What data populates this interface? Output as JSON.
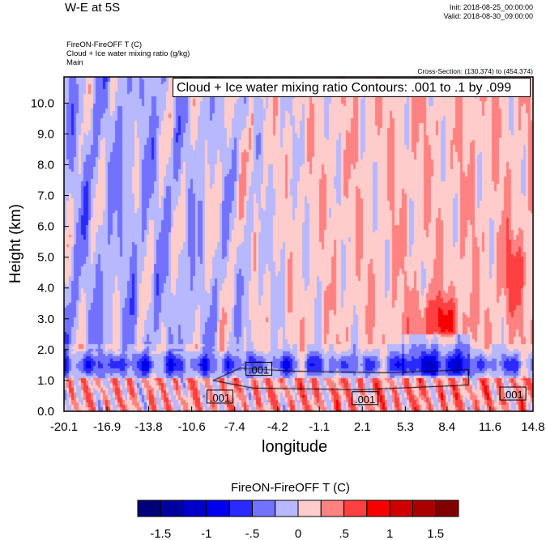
{
  "header": {
    "title": "W-E at 5S",
    "init": "Init: 2018-08-25_00:00:00",
    "valid": "Valid: 2018-08-30_09:00:00",
    "fields": [
      "FireON-FireOFF T   (C)",
      "Cloud + Ice water mixing ratio   (g/kg)",
      "Main"
    ],
    "cross_section": "Cross-Section: (130,374) to (454,374)"
  },
  "chart_data": {
    "type": "heatmap",
    "title": "W-E at 5S",
    "xlabel": "longitude",
    "ylabel": "Height (km)",
    "xlim": [
      -20.1,
      14.8
    ],
    "ylim": [
      0,
      10.85
    ],
    "x_ticks": [
      "-20.1",
      "-16.9",
      "-13.8",
      "-10.6",
      "-7.4",
      "-4.2",
      "-1.1",
      "2.1",
      "5.3",
      "8.4",
      "11.6",
      "14.8"
    ],
    "y_ticks": [
      "0.0",
      "1.0",
      "2.0",
      "3.0",
      "4.0",
      "5.0",
      "6.0",
      "7.0",
      "8.0",
      "9.0",
      "10.0"
    ],
    "contour_legend": "Cloud + Ice water mixing ratio Contours: .001 to .1 by .099",
    "contour_labels": [
      ".001",
      ".001",
      ".001",
      ".001"
    ],
    "colorbar": {
      "title": "FireON-FireOFF T  (C)",
      "levels": [
        -1.5,
        -1.25,
        -1,
        -0.75,
        -0.5,
        -0.25,
        0,
        0.25,
        0.5,
        0.75,
        1,
        1.25,
        1.5
      ],
      "labels": [
        "-1.5",
        "-1",
        "-.5",
        "0",
        ".5",
        "1",
        "1.5"
      ],
      "colors": [
        "#00007a",
        "#00009e",
        "#0000c8",
        "#0000f0",
        "#2a2aff",
        "#7272ff",
        "#b8b8ff",
        "#ffcccc",
        "#ff8282",
        "#ff4040",
        "#f70000",
        "#d00000",
        "#aa0000",
        "#800000"
      ]
    }
  }
}
